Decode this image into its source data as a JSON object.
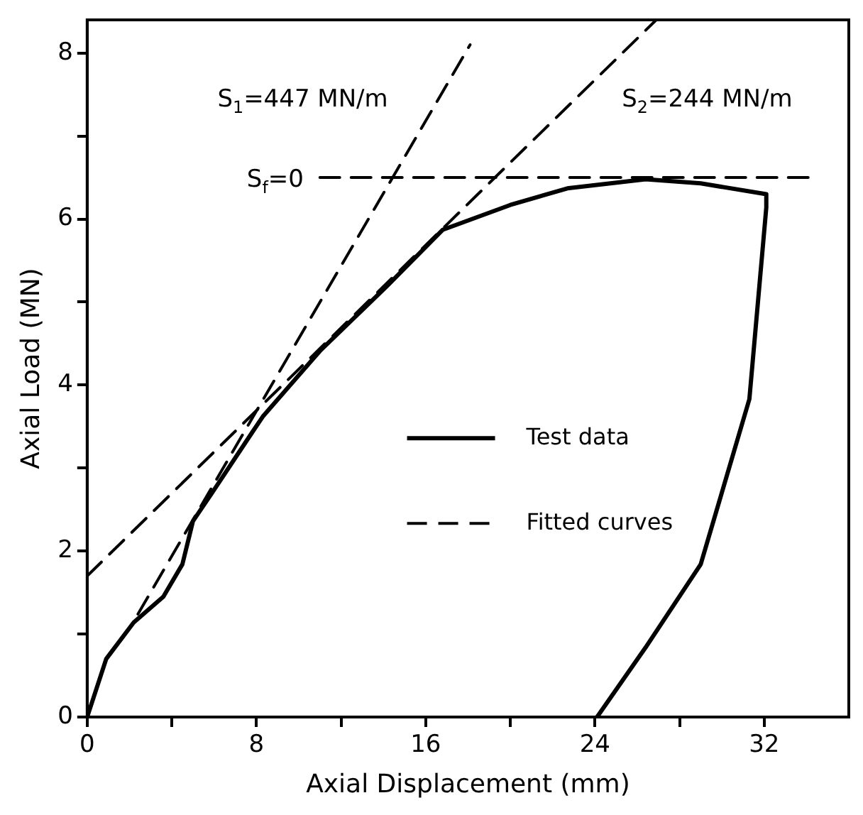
{
  "chart_data": {
    "type": "line",
    "xlabel": "Axial Displacement (mm)",
    "ylabel": "Axial Load (MN)",
    "xlim": [
      0,
      36
    ],
    "ylim": [
      0,
      8.4
    ],
    "xticks": [
      0,
      {
        "value": 4,
        "label": null
      },
      8,
      {
        "value": 12,
        "label": null
      },
      16,
      {
        "value": 20,
        "label": null
      },
      24,
      {
        "value": 28,
        "label": null
      },
      32
    ],
    "yticks": [
      0,
      {
        "value": 1,
        "label": null
      },
      2,
      {
        "value": 3,
        "label": null
      },
      4,
      {
        "value": 5,
        "label": null
      },
      6,
      {
        "value": 7,
        "label": null
      },
      8
    ],
    "grid": false,
    "legend": "center",
    "marker": "none",
    "series": [
      {
        "name": "Test data",
        "color": "#000000",
        "line_style": "solid",
        "x": [
          0,
          0.9,
          2.2,
          3.6,
          4.5,
          5.0,
          5.9,
          7.8,
          8.3,
          11.0,
          14.2,
          16.8,
          20.0,
          22.7,
          26.4,
          29.0,
          32.1,
          32.1,
          31.3,
          29.0,
          26.4,
          24.1
        ],
        "values": [
          0,
          0.7,
          1.14,
          1.45,
          1.84,
          2.36,
          2.7,
          3.43,
          3.62,
          4.41,
          5.2,
          5.87,
          6.17,
          6.37,
          6.48,
          6.43,
          6.3,
          6.14,
          3.83,
          1.84,
          0.84,
          0
        ]
      },
      {
        "name": "Fitted curves",
        "color": "#000000",
        "line_style": "dashed",
        "x": [
          2.4,
          18.1
        ],
        "values": [
          1.24,
          8.1
        ]
      },
      {
        "color": "#000000",
        "line_style": "dashed",
        "x": [
          0,
          26.9
        ],
        "values": [
          1.7,
          8.4
        ]
      },
      {
        "color": "#000000",
        "line_style": "dashed",
        "x": [
          11,
          34.1
        ],
        "values": [
          6.5,
          6.5
        ]
      }
    ],
    "annotations": [
      "S$_{1}$=447 MN/m",
      "S$_{2}$=244 MN/m",
      "S$_{f}$=0"
    ]
  }
}
